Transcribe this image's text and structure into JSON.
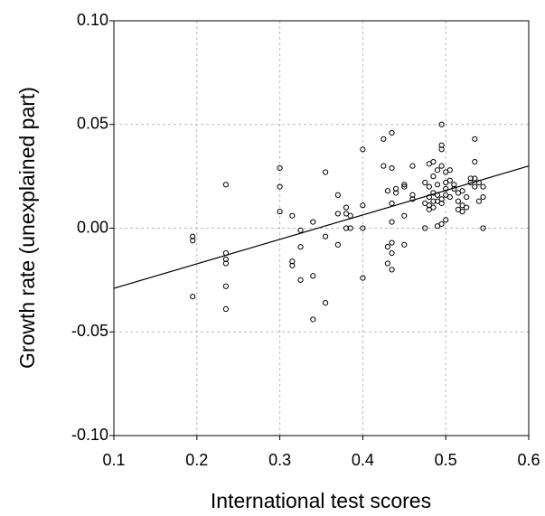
{
  "chart_data": {
    "type": "scatter",
    "x_label": "International test scores",
    "y_label": "Growth rate (unexplained part)",
    "xlim": [
      0.1,
      0.6
    ],
    "ylim": [
      -0.1,
      0.1
    ],
    "xticks": [
      0.1,
      0.2,
      0.3,
      0.4,
      0.5,
      0.6
    ],
    "yticks": [
      {
        "value": -0.1,
        "label": "-0.10"
      },
      {
        "value": -0.05,
        "label": "-0.05"
      },
      {
        "value": 0,
        "label": "0.00"
      },
      {
        "value": 0.05,
        "label": "0.05"
      },
      {
        "value": 0.1,
        "label": "0.10"
      }
    ],
    "grid": true,
    "color": "#000000",
    "x": [
      0.195,
      0.195,
      0.195,
      0.235,
      0.235,
      0.235,
      0.235,
      0.235,
      0.235,
      0.3,
      0.3,
      0.3,
      0.315,
      0.315,
      0.315,
      0.325,
      0.325,
      0.325,
      0.34,
      0.34,
      0.34,
      0.355,
      0.355,
      0.355,
      0.37,
      0.37,
      0.37,
      0.38,
      0.38,
      0.38,
      0.385,
      0.385,
      0.4,
      0.4,
      0.4,
      0.4,
      0.425,
      0.425,
      0.43,
      0.43,
      0.43,
      0.435,
      0.435,
      0.435,
      0.435,
      0.435,
      0.435,
      0.435,
      0.44,
      0.44,
      0.45,
      0.45,
      0.45,
      0.45,
      0.46,
      0.46,
      0.46,
      0.475,
      0.475,
      0.475,
      0.48,
      0.48,
      0.48,
      0.48,
      0.48,
      0.485,
      0.485,
      0.485,
      0.485,
      0.485,
      0.49,
      0.49,
      0.49,
      0.49,
      0.49,
      0.495,
      0.495,
      0.495,
      0.495,
      0.495,
      0.495,
      0.495,
      0.5,
      0.5,
      0.5,
      0.5,
      0.5,
      0.505,
      0.505,
      0.505,
      0.51,
      0.51,
      0.515,
      0.515,
      0.515,
      0.52,
      0.52,
      0.52,
      0.525,
      0.525,
      0.53,
      0.53,
      0.535,
      0.535,
      0.535,
      0.535,
      0.54,
      0.54,
      0.545,
      0.545,
      0.545
    ],
    "values": [
      -0.004,
      -0.006,
      -0.033,
      0.021,
      -0.012,
      -0.015,
      -0.017,
      -0.028,
      -0.039,
      0.029,
      0.02,
      0.008,
      0.006,
      -0.016,
      -0.018,
      -0.001,
      -0.009,
      -0.025,
      0.003,
      -0.023,
      -0.044,
      0.027,
      -0.004,
      -0.036,
      0.016,
      0.007,
      -0.008,
      0.01,
      0.007,
      0.0,
      0.006,
      0.0,
      0.038,
      0.011,
      0.0,
      -0.024,
      0.03,
      0.043,
      0.018,
      -0.009,
      -0.017,
      0.046,
      0.029,
      0.012,
      0.003,
      -0.007,
      -0.012,
      -0.02,
      0.019,
      0.017,
      0.021,
      0.02,
      0.006,
      -0.008,
      0.03,
      0.016,
      0.014,
      0.022,
      0.012,
      0.0,
      0.031,
      0.02,
      0.015,
      0.011,
      0.009,
      0.032,
      0.025,
      0.017,
      0.013,
      0.01,
      0.028,
      0.021,
      0.016,
      0.013,
      0.001,
      0.05,
      0.04,
      0.038,
      0.03,
      0.014,
      0.012,
      0.002,
      0.027,
      0.022,
      0.019,
      0.016,
      0.004,
      0.023,
      0.028,
      0.015,
      0.021,
      0.019,
      0.017,
      0.013,
      0.009,
      0.018,
      0.011,
      0.008,
      0.015,
      0.01,
      0.024,
      0.022,
      0.043,
      0.032,
      0.024,
      0.02,
      0.022,
      0.013,
      0.02,
      0.015,
      0.0
    ],
    "fit_line": {
      "x": [
        0.1,
        0.6
      ],
      "values": [
        -0.029,
        0.03
      ]
    }
  }
}
